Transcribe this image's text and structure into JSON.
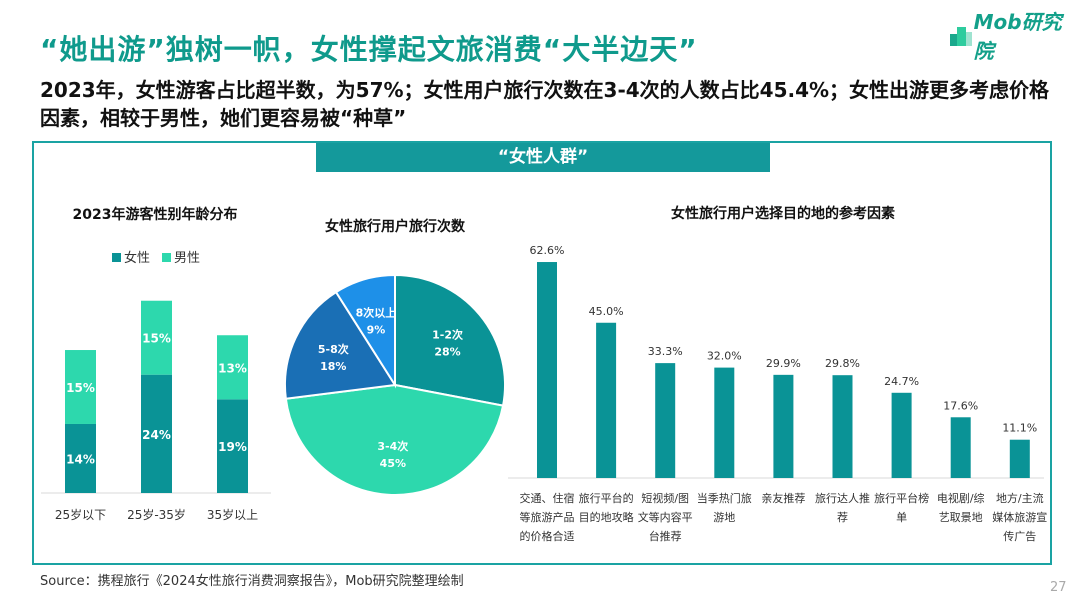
{
  "title": "“她出游”独树一帜，女性撑起文旅消费“大半边天”",
  "subtitle": "2023年，女性游客占比超半数，为57%；女性用户旅行次数在3-4次的人数占比45.4%；女性出游更多考虑价格因素，相较于男性，她们更容易被“种草”",
  "logo": "Mob研究院",
  "banner": "“女性人群”",
  "source": "Source：携程旅行《2024女性旅行消费洞察报告》，Mob研究院整理绘制",
  "page_number": "27",
  "colors": {
    "teal": "#0a9396",
    "mint": "#2dd8ad",
    "blue": "#1a6fb5",
    "lightblue": "#1e90e8"
  },
  "chart_data": [
    {
      "type": "bar",
      "stacked": true,
      "title": "2023年游客性别年龄分布",
      "categories": [
        "25岁以下",
        "25岁-35岁",
        "35岁以上"
      ],
      "series": [
        {
          "name": "女性",
          "values": [
            14,
            24,
            19
          ],
          "labels": [
            "14%",
            "24%",
            "19%"
          ]
        },
        {
          "name": "男性",
          "values": [
            15,
            15,
            13
          ],
          "labels": [
            "15%",
            "15%",
            "13%"
          ]
        }
      ],
      "legend": "top"
    },
    {
      "type": "pie",
      "title": "女性旅行用户旅行次数",
      "slices": [
        {
          "label": "1-2次",
          "value": 28,
          "text": "28%"
        },
        {
          "label": "3-4次",
          "value": 45,
          "text": "45%"
        },
        {
          "label": "5-8次",
          "value": 18,
          "text": "18%"
        },
        {
          "label": "8次以上",
          "value": 9,
          "text": "9%"
        }
      ]
    },
    {
      "type": "bar",
      "title": "女性旅行用户选择目的地的参考因素",
      "categories": [
        [
          "交通、住宿",
          "等旅游产品",
          "的价格合适"
        ],
        [
          "旅行平台的",
          "目的地攻略"
        ],
        [
          "短视频/图",
          "文等内容平",
          "台推荐"
        ],
        [
          "当季热门旅",
          "游地"
        ],
        [
          "亲友推荐"
        ],
        [
          "旅行达人推",
          "荐"
        ],
        [
          "旅行平台榜",
          "单"
        ],
        [
          "电视剧/综",
          "艺取景地"
        ],
        [
          "地方/主流",
          "媒体旅游宣",
          "传广告"
        ]
      ],
      "values": [
        62.6,
        45.0,
        33.3,
        32.0,
        29.9,
        29.8,
        24.7,
        17.6,
        11.1
      ],
      "labels": [
        "62.6%",
        "45.0%",
        "33.3%",
        "32.0%",
        "29.9%",
        "29.8%",
        "24.7%",
        "17.6%",
        "11.1%"
      ]
    }
  ]
}
